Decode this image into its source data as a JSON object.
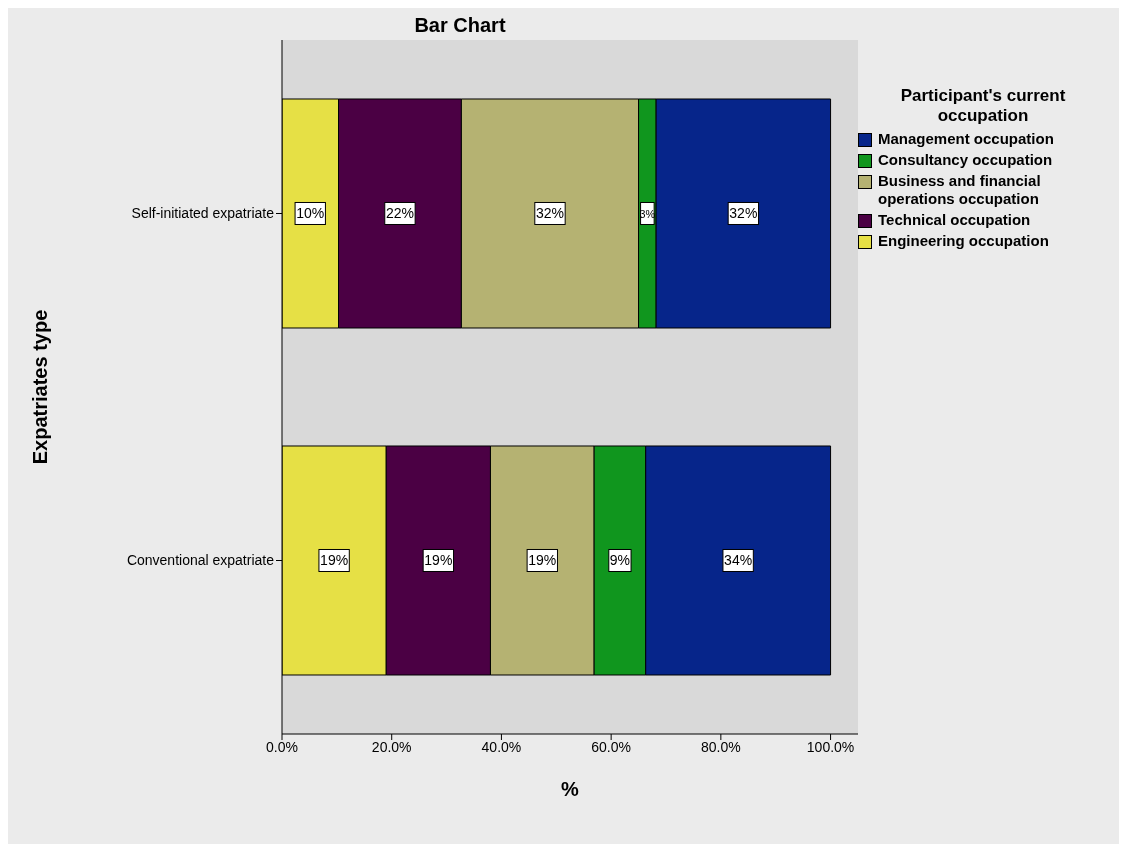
{
  "chart_data": {
    "type": "bar",
    "title": "Bar Chart",
    "orientation": "horizontal",
    "stacked": true,
    "categories": [
      "Self-initiated expatriate",
      "Conventional expatriate"
    ],
    "xlabel": "%",
    "ylabel": "Expatriates type",
    "legend_title": "Participant's current occupation",
    "xlim": [
      0,
      105
    ],
    "xticks": [
      {
        "value": 0,
        "label": "0.0%"
      },
      {
        "value": 20,
        "label": "20.0%"
      },
      {
        "value": 40,
        "label": "40.0%"
      },
      {
        "value": 60,
        "label": "60.0%"
      },
      {
        "value": 80,
        "label": "80.0%"
      },
      {
        "value": 100,
        "label": "100.0%"
      }
    ],
    "legend": "top right",
    "grid": false,
    "series": [
      {
        "name": "Engineering occupation",
        "color": "#e6e045",
        "values": [
          10.3,
          19.0
        ],
        "value_labels": [
          "10%",
          "19%"
        ]
      },
      {
        "name": "Technical occupation",
        "color": "#4b0044",
        "values": [
          22.4,
          19.0
        ],
        "value_labels": [
          "22%",
          "19%"
        ]
      },
      {
        "name": "Business and financial operations occupation",
        "color": "#b5b272",
        "values": [
          32.3,
          18.9
        ],
        "value_labels": [
          "32%",
          "19%"
        ]
      },
      {
        "name": "Consultancy occupation",
        "color": "#10961e",
        "values": [
          3.2,
          9.4
        ],
        "value_labels": [
          "3%",
          "9%"
        ]
      },
      {
        "name": "Management occupation",
        "color": "#06258a",
        "values": [
          31.8,
          33.7
        ],
        "value_labels": [
          "32%",
          "34%"
        ]
      }
    ]
  }
}
